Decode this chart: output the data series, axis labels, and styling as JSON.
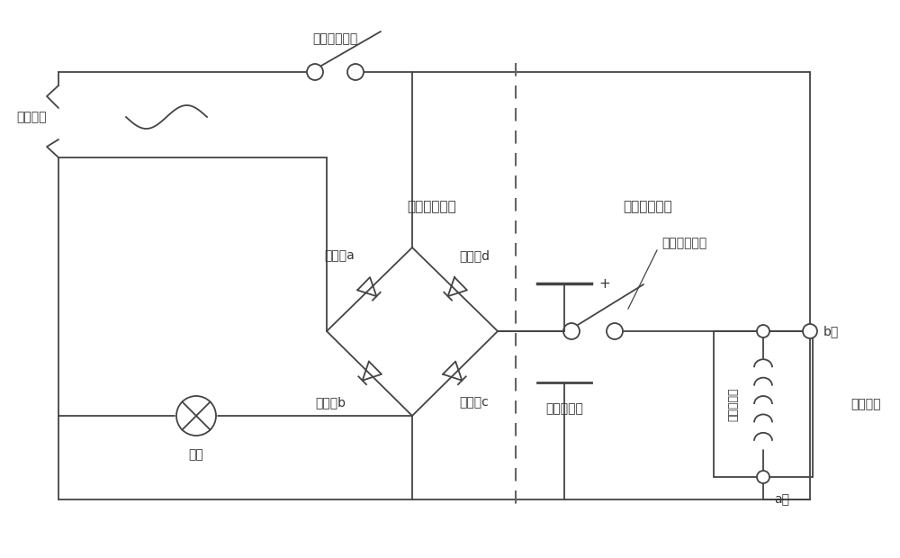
{
  "background": "#ffffff",
  "line_color": "#444444",
  "dashed_color": "#666666",
  "text_color": "#333333",
  "font_size": 10,
  "fig_width": 10.0,
  "fig_height": 6.2,
  "labels": {
    "ac_source": "交流电源",
    "charge_switch": "充电电路开关",
    "diode_a": "二极管a",
    "diode_b": "二极管b",
    "diode_c": "二极管c",
    "diode_d": "二极管d",
    "lamp": "灯泡",
    "supercap": "超级电容器",
    "discharge_switch": "放电电路开关",
    "charge_section": "充电电路部分",
    "discharge_section": "放电电路部分",
    "terminal_a": "a端",
    "terminal_b": "b端",
    "analog_mech": "模拟机构",
    "plus": "+",
    "minus": "-",
    "equalizer": "容量均衡器"
  }
}
